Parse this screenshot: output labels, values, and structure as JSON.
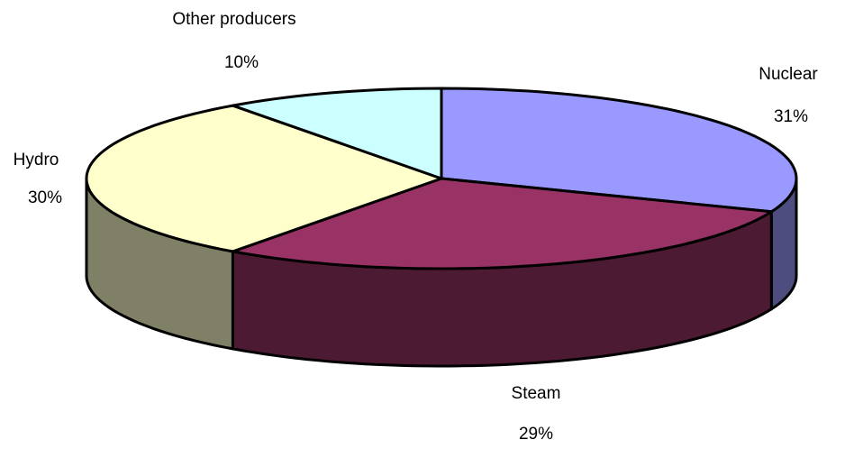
{
  "chart_data": {
    "type": "pie3d",
    "categories": [
      "Nuclear",
      "Steam",
      "Hydro",
      "Other producers"
    ],
    "values": [
      31,
      29,
      30,
      10
    ],
    "value_labels": [
      "31%",
      "29%",
      "30%",
      "10%"
    ],
    "colors": [
      "#9999ff",
      "#993366",
      "#ffffcc",
      "#ccffff"
    ]
  }
}
